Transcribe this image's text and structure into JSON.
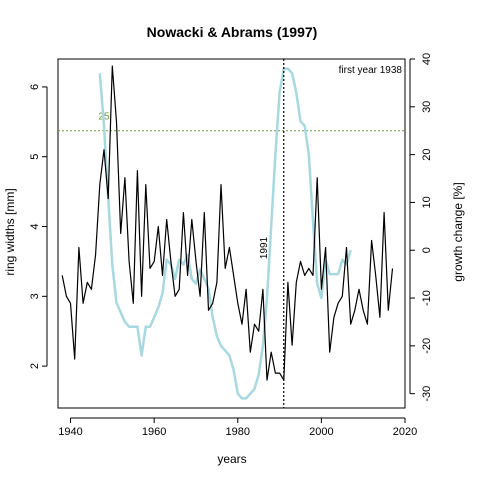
{
  "chart_data": {
    "type": "line",
    "title": "Nowacki & Abrams (1997)",
    "xlabel": "years",
    "ylabel_left": "ring widths [mm]",
    "ylabel_right": "growth change [%]",
    "xlim": [
      1937,
      2020
    ],
    "ylim_left": [
      1.4,
      6.4
    ],
    "ylim_right": [
      -33,
      40
    ],
    "x_ticks": [
      1940,
      1960,
      1980,
      2000,
      2020
    ],
    "y_left_ticks": [
      2,
      3,
      4,
      5,
      6
    ],
    "y_right_ticks": [
      -30,
      -20,
      -10,
      0,
      10,
      20,
      30,
      40
    ],
    "threshold": {
      "value": 25,
      "label": "25",
      "axis": "right",
      "color": "#6a9a3a"
    },
    "event": {
      "year": 1991,
      "label": "1991"
    },
    "note": "first year 1938",
    "colors": {
      "ring_widths": "#000000",
      "growth_change": "#a8d8e0"
    },
    "series": [
      {
        "axis": "left",
        "style": "black",
        "x": [
          1938,
          1939,
          1940,
          1941,
          1942,
          1943,
          1944,
          1945,
          1946,
          1947,
          1948,
          1949,
          1950,
          1951,
          1952,
          1953,
          1954,
          1955,
          1956,
          1957,
          1958,
          1959,
          1960,
          1961,
          1962,
          1963,
          1964,
          1965,
          1966,
          1967,
          1968,
          1969,
          1970,
          1971,
          1972,
          1973,
          1974,
          1975,
          1976,
          1977,
          1978,
          1979,
          1980,
          1981,
          1982,
          1983,
          1984,
          1985,
          1986,
          1987,
          1988,
          1989,
          1990,
          1991,
          1992,
          1993,
          1994,
          1995,
          1996,
          1997,
          1998,
          1999,
          2000,
          2001,
          2002,
          2003,
          2004,
          2005,
          2006,
          2007,
          2008,
          2009,
          2010,
          2011,
          2012,
          2013,
          2014,
          2015,
          2016,
          2017
        ],
        "values": [
          3.3,
          3.0,
          2.9,
          2.1,
          3.7,
          2.9,
          3.2,
          3.1,
          3.6,
          4.6,
          5.1,
          4.4,
          6.3,
          5.5,
          3.9,
          4.7,
          3.5,
          2.9,
          4.8,
          3.0,
          4.6,
          3.4,
          3.5,
          4.0,
          3.3,
          4.1,
          3.5,
          3.0,
          3.1,
          4.2,
          3.3,
          4.1,
          3.5,
          3.0,
          4.2,
          2.8,
          2.9,
          3.2,
          4.6,
          3.4,
          3.7,
          3.3,
          2.9,
          2.6,
          3.1,
          2.2,
          2.6,
          2.5,
          3.1,
          1.8,
          2.2,
          1.9,
          1.9,
          1.8,
          3.2,
          2.3,
          3.2,
          3.5,
          3.3,
          3.4,
          3.3,
          4.7,
          3.1,
          3.7,
          2.2,
          2.7,
          2.9,
          3.0,
          3.7,
          2.6,
          2.8,
          3.1,
          2.8,
          2.6,
          3.8,
          3.3,
          2.7,
          4.2,
          2.8,
          3.4
        ]
      },
      {
        "axis": "right",
        "style": "lightblue",
        "x": [
          1947,
          1948,
          1949,
          1950,
          1951,
          1952,
          1953,
          1954,
          1955,
          1956,
          1957,
          1958,
          1959,
          1960,
          1961,
          1962,
          1963,
          1964,
          1965,
          1966,
          1967,
          1968,
          1969,
          1970,
          1971,
          1972,
          1973,
          1974,
          1975,
          1976,
          1977,
          1978,
          1979,
          1980,
          1981,
          1982,
          1983,
          1984,
          1985,
          1986,
          1987,
          1988,
          1989,
          1990,
          1991,
          1992,
          1993,
          1994,
          1995,
          1996,
          1997,
          1998,
          1999,
          2000,
          2001,
          2002,
          2003,
          2004,
          2005,
          2006,
          2007
        ],
        "values": [
          37,
          26,
          11,
          -3,
          -11,
          -13,
          -15,
          -16,
          -16,
          -16,
          -22,
          -16,
          -16,
          -14,
          -12,
          -9,
          -2,
          -3,
          -6,
          -2,
          -3,
          -1,
          -6,
          -7,
          -4,
          -6,
          -8,
          -14,
          -18,
          -20,
          -21,
          -22,
          -25,
          -30,
          -31,
          -31,
          -30,
          -29,
          -26,
          -20,
          -10,
          5,
          20,
          33,
          38,
          38,
          37,
          33,
          27,
          26,
          20,
          6,
          -7,
          -10,
          -2,
          -5,
          -5,
          -5,
          -2,
          -3,
          0
        ]
      }
    ]
  }
}
